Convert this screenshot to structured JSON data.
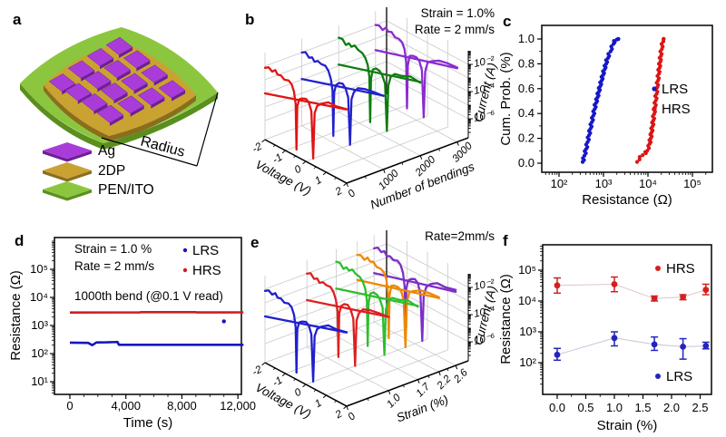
{
  "panels": {
    "a": {
      "label": "a",
      "radius_label": "Radius",
      "electrode_grid": {
        "rows": 4,
        "cols": 4
      },
      "legend": [
        {
          "name": "Ag",
          "color": "#a93cd9",
          "dark": "#6e1f96"
        },
        {
          "name": "2DP",
          "color": "#c9a232",
          "dark": "#8a6d1d"
        },
        {
          "name": "PEN/ITO",
          "color": "#8cc63e",
          "dark": "#5a8f1e"
        }
      ]
    },
    "b": {
      "label": "b",
      "annotations": [
        "Strain = 1.0%",
        "Rate = 2 mm/s"
      ]
    },
    "c": {
      "label": "c"
    },
    "d": {
      "label": "d",
      "annotations": [
        "Strain = 1.0 %",
        "Rate = 2 mm/s",
        "1000th bend (@0.1 V read)"
      ]
    },
    "e": {
      "label": "e",
      "annotations": [
        "Rate=2mm/s"
      ]
    },
    "f": {
      "label": "f"
    }
  },
  "chart_data": [
    {
      "panel": "b",
      "type": "line",
      "subtype": "3d-iv-butterfly",
      "z_scale": "log",
      "xlabel": "Voltage (V)",
      "x_ticks": [
        -2,
        -1,
        0,
        1,
        2
      ],
      "ylabel": "Number of bendings",
      "y_tick_labels": [
        "0",
        "1000",
        "2000",
        "3000"
      ],
      "y_tick_pos": [
        0,
        0.303,
        0.606,
        0.909
      ],
      "zlabel": "Current (A)",
      "z_tick_labels": [
        "10⁻²",
        "10⁻⁴",
        "10⁻⁶"
      ],
      "z_tick_exp": [
        -2,
        -4,
        -6
      ],
      "series": [
        {
          "name": "0",
          "color": "#e01414"
        },
        {
          "name": "1000",
          "color": "#2222cc"
        },
        {
          "name": "2000",
          "color": "#0d7d0d"
        },
        {
          "name": "3000",
          "color": "#8a2bd0"
        }
      ]
    },
    {
      "panel": "c",
      "type": "scatter",
      "x_scale": "log",
      "xlabel": "Resistance (Ω)",
      "ylabel": "Cum. Prob. (%)",
      "x_tick_labels": [
        "10²",
        "10³",
        "10⁴",
        "10⁵"
      ],
      "x_tick_exp": [
        2,
        3,
        4,
        5
      ],
      "y_tick_labels": [
        "0.0",
        "0.2",
        "0.4",
        "0.6",
        "0.8",
        "1.0"
      ],
      "y_ticks": [
        0,
        0.2,
        0.4,
        0.6,
        0.8,
        1.0
      ],
      "series": [
        {
          "name": "LRS",
          "color": "#1717c8",
          "points": [
            [
              340,
              0.01
            ],
            [
              360,
              0.04
            ],
            [
              385,
              0.08
            ],
            [
              415,
              0.13
            ],
            [
              450,
              0.19
            ],
            [
              495,
              0.26
            ],
            [
              545,
              0.33
            ],
            [
              600,
              0.4
            ],
            [
              660,
              0.47
            ],
            [
              730,
              0.53
            ],
            [
              800,
              0.59
            ],
            [
              880,
              0.65
            ],
            [
              970,
              0.71
            ],
            [
              1080,
              0.77
            ],
            [
              1200,
              0.83
            ],
            [
              1350,
              0.88
            ],
            [
              1500,
              0.92
            ],
            [
              1650,
              0.96
            ],
            [
              1800,
              0.985
            ],
            [
              1950,
              0.995
            ],
            [
              2150,
              1.0
            ]
          ]
        },
        {
          "name": "HRS",
          "color": "#dd1515",
          "points": [
            [
              5700,
              0.01
            ],
            [
              6200,
              0.03
            ],
            [
              6800,
              0.05
            ],
            [
              7600,
              0.065
            ],
            [
              8600,
              0.08
            ],
            [
              9600,
              0.1
            ],
            [
              10600,
              0.14
            ],
            [
              11500,
              0.2
            ],
            [
              12400,
              0.28
            ],
            [
              13300,
              0.36
            ],
            [
              14300,
              0.45
            ],
            [
              15300,
              0.54
            ],
            [
              16300,
              0.63
            ],
            [
              17400,
              0.72
            ],
            [
              18500,
              0.8
            ],
            [
              19600,
              0.88
            ],
            [
              20700,
              0.94
            ],
            [
              21800,
              0.98
            ],
            [
              22500,
              1.0
            ]
          ]
        }
      ]
    },
    {
      "panel": "d",
      "type": "line",
      "y_scale": "log",
      "xlabel": "Time (s)",
      "ylabel": "Resistance (Ω)",
      "x_ticks": [
        0,
        4000,
        8000,
        12000
      ],
      "x_tick_labels": [
        "0",
        "4,000",
        "8,000",
        "12,000"
      ],
      "y_tick_labels": [
        "10¹",
        "10²",
        "10³",
        "10⁴",
        "10⁵"
      ],
      "y_tick_exp": [
        1,
        2,
        3,
        4,
        5
      ],
      "series": [
        {
          "name": "HRS",
          "color": "#cc2020",
          "points": [
            [
              0,
              2900
            ],
            [
              5000,
              2920
            ],
            [
              5050,
              2980
            ],
            [
              9000,
              2980
            ],
            [
              9050,
              2920
            ],
            [
              12400,
              2930
            ]
          ]
        },
        {
          "name": "LRS",
          "color": "#1616bb",
          "points": [
            [
              0,
              245
            ],
            [
              1300,
              240
            ],
            [
              1600,
              200
            ],
            [
              1900,
              250
            ],
            [
              2600,
              252
            ],
            [
              3400,
              258
            ],
            [
              3500,
              205
            ],
            [
              12400,
              205
            ]
          ]
        }
      ],
      "outlier": {
        "series": "LRS",
        "color": "#1616bb",
        "point": [
          11000,
          1400
        ]
      }
    },
    {
      "panel": "e",
      "type": "line",
      "subtype": "3d-iv-butterfly",
      "z_scale": "log",
      "xlabel": "Voltage (V)",
      "x_ticks": [
        -2,
        -1,
        0,
        1,
        2
      ],
      "ylabel": "Strain (%)",
      "y_tick_labels": [
        "0",
        "1.0",
        "1.7",
        "2.2",
        "2.6"
      ],
      "y_tick_pos": [
        0,
        0.345,
        0.586,
        0.759,
        0.897
      ],
      "zlabel": "Current (A)",
      "z_tick_labels": [
        "10⁻²",
        "10⁻⁴",
        "10⁻⁶"
      ],
      "z_tick_exp": [
        -2,
        -4,
        -6
      ],
      "series": [
        {
          "name": "0",
          "color": "#2020cc"
        },
        {
          "name": "1.0",
          "color": "#dd2020"
        },
        {
          "name": "1.7",
          "color": "#2ebe2e"
        },
        {
          "name": "2.2",
          "color": "#ee8800"
        },
        {
          "name": "2.6",
          "color": "#7d2ec7"
        }
      ]
    },
    {
      "panel": "f",
      "type": "scatter",
      "y_scale": "log",
      "xlabel": "Strain (%)",
      "ylabel": "Resistance (Ω)",
      "x_ticks": [
        0,
        0.5,
        1.0,
        1.5,
        2.0,
        2.5
      ],
      "x_tick_labels": [
        "0.0",
        "0.5",
        "1.0",
        "1.5",
        "2.0",
        "2.5"
      ],
      "y_tick_labels": [
        "10²",
        "10³",
        "10⁴",
        "10⁵"
      ],
      "y_tick_exp": [
        2,
        3,
        4,
        5
      ],
      "strains": [
        0.0,
        1.0,
        1.7,
        2.2,
        2.6
      ],
      "series": [
        {
          "name": "HRS",
          "color": "#d42020",
          "values": [
            32000,
            35000,
            12000,
            13500,
            23000
          ],
          "err_lo": [
            18000,
            20000,
            10000,
            11000,
            16000
          ],
          "err_hi": [
            56000,
            60000,
            14500,
            16000,
            35000
          ]
        },
        {
          "name": "LRS",
          "color": "#2525bb",
          "values": [
            180,
            630,
            390,
            330,
            350
          ],
          "err_lo": [
            120,
            350,
            250,
            130,
            280
          ],
          "err_hi": [
            290,
            1000,
            680,
            600,
            460
          ]
        }
      ]
    }
  ]
}
